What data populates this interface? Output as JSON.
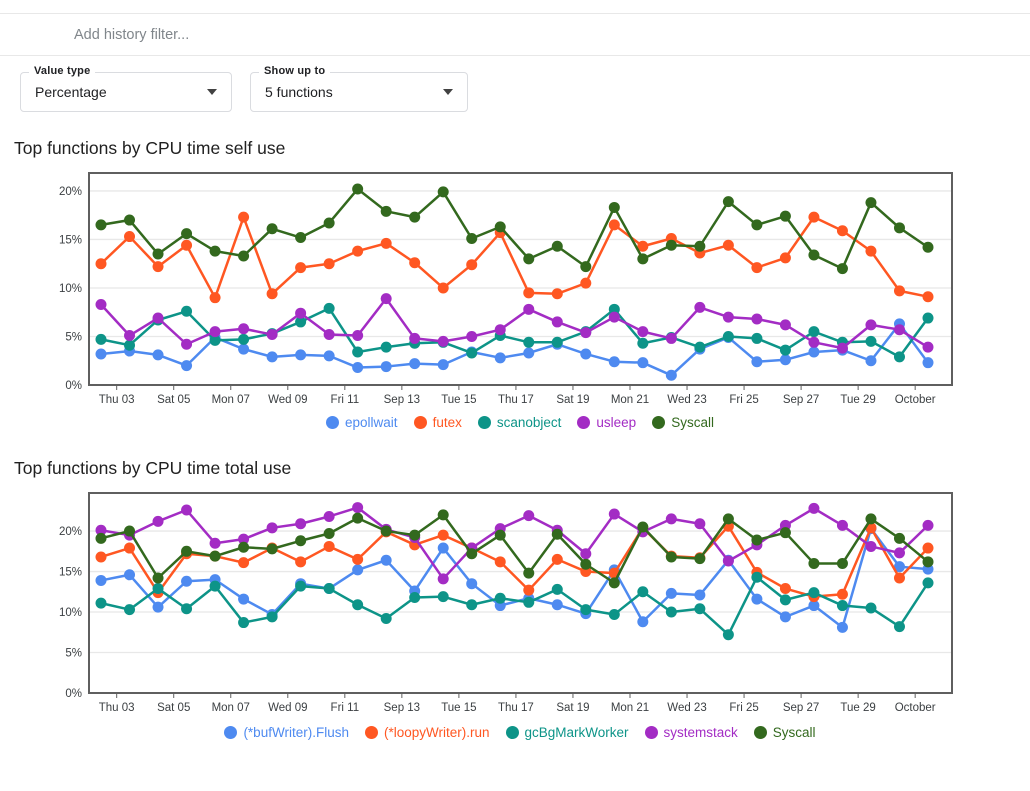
{
  "filter_bar": {
    "icon": "filter-list-icon",
    "placeholder": "Add history filter..."
  },
  "controls": {
    "value_type": {
      "label": "Value type",
      "value": "Percentage",
      "icon": "caret-down-icon"
    },
    "show_up_to": {
      "label": "Show up to",
      "value": "5 functions",
      "icon": "caret-down-icon"
    }
  },
  "colors": {
    "blue": "#4e8af0",
    "orange": "#ff5722",
    "teal": "#0d9488",
    "purple": "#a32cc4",
    "green": "#33691e"
  },
  "chart_data": [
    {
      "type": "line",
      "title": "Top functions by CPU time self use",
      "xlabel": "",
      "ylabel": "",
      "ylim": [
        0,
        21.85
      ],
      "yticks": [
        0,
        5,
        10,
        15,
        20
      ],
      "y_tick_labels": [
        "0%",
        "5%",
        "10%",
        "15%",
        "20%"
      ],
      "x_tick_labels": [
        "Thu 03",
        "Sat 05",
        "Mon 07",
        "Wed 09",
        "Fri 11",
        "Sep 13",
        "Tue 15",
        "Thu 17",
        "Sat 19",
        "Mon 21",
        "Wed 23",
        "Fri 25",
        "Sep 27",
        "Tue 29",
        "October"
      ],
      "grid": true,
      "legend_position": "bottom",
      "series": [
        {
          "name": "epollwait",
          "color": "#4e8af0",
          "values": [
            3.2,
            3.5,
            3.1,
            2.0,
            4.9,
            3.7,
            2.9,
            3.1,
            3.0,
            1.8,
            1.9,
            2.2,
            2.1,
            3.4,
            2.8,
            3.3,
            4.2,
            3.2,
            2.4,
            2.3,
            1.0,
            3.7,
            4.9,
            2.4,
            2.6,
            3.4,
            3.6,
            2.5,
            6.3,
            2.3
          ]
        },
        {
          "name": "futex",
          "color": "#ff5722",
          "values": [
            12.5,
            15.3,
            12.2,
            14.4,
            9.0,
            17.3,
            9.4,
            12.1,
            12.5,
            13.8,
            14.6,
            12.6,
            10.0,
            12.4,
            15.7,
            9.5,
            9.4,
            10.5,
            16.5,
            14.3,
            15.1,
            13.6,
            14.4,
            12.1,
            13.1,
            17.3,
            15.9,
            13.8,
            9.7,
            9.1
          ]
        },
        {
          "name": "scanobject",
          "color": "#0d9488",
          "values": [
            4.7,
            4.1,
            6.7,
            7.6,
            4.6,
            4.7,
            5.3,
            6.5,
            7.9,
            3.4,
            3.9,
            4.3,
            4.4,
            3.3,
            5.1,
            4.4,
            4.4,
            5.5,
            7.8,
            4.3,
            4.9,
            3.9,
            5.0,
            4.8,
            3.6,
            5.5,
            4.4,
            4.5,
            2.9,
            6.9
          ]
        },
        {
          "name": "usleep",
          "color": "#a32cc4",
          "values": [
            8.3,
            5.1,
            6.9,
            4.2,
            5.5,
            5.8,
            5.2,
            7.4,
            5.2,
            5.1,
            8.9,
            4.8,
            4.5,
            5.0,
            5.7,
            7.8,
            6.5,
            5.4,
            7.0,
            5.5,
            4.8,
            8.0,
            7.0,
            6.8,
            6.2,
            4.4,
            3.8,
            6.2,
            5.7,
            3.9
          ]
        },
        {
          "name": "Syscall",
          "color": "#33691e",
          "values": [
            16.5,
            17.0,
            13.5,
            15.6,
            13.8,
            13.3,
            16.1,
            15.2,
            16.7,
            20.2,
            17.9,
            17.3,
            19.9,
            15.1,
            16.3,
            13.0,
            14.3,
            12.2,
            18.3,
            13.0,
            14.4,
            14.3,
            18.9,
            16.5,
            17.4,
            13.4,
            12.0,
            18.8,
            16.2,
            14.2
          ]
        }
      ]
    },
    {
      "type": "line",
      "title": "Top functions by CPU time total use",
      "xlabel": "",
      "ylabel": "",
      "ylim": [
        0,
        24.7
      ],
      "yticks": [
        0,
        5,
        10,
        15,
        20
      ],
      "y_tick_labels": [
        "0%",
        "5%",
        "10%",
        "15%",
        "20%"
      ],
      "x_tick_labels": [
        "Thu 03",
        "Sat 05",
        "Mon 07",
        "Wed 09",
        "Fri 11",
        "Sep 13",
        "Tue 15",
        "Thu 17",
        "Sat 19",
        "Mon 21",
        "Wed 23",
        "Fri 25",
        "Sep 27",
        "Tue 29",
        "October"
      ],
      "grid": true,
      "legend_position": "bottom",
      "series": [
        {
          "name": "(*bufWriter).Flush",
          "color": "#4e8af0",
          "values": [
            13.9,
            14.6,
            10.6,
            13.8,
            14.0,
            11.6,
            9.7,
            13.5,
            12.9,
            15.2,
            16.4,
            12.6,
            17.9,
            13.5,
            10.8,
            11.7,
            10.9,
            9.8,
            15.2,
            8.8,
            12.3,
            12.1,
            16.4,
            11.6,
            9.4,
            10.8,
            8.1,
            20.3,
            15.6,
            15.3
          ]
        },
        {
          "name": "(*loopyWriter).run",
          "color": "#ff5722",
          "values": [
            16.8,
            17.9,
            12.4,
            17.2,
            16.9,
            16.1,
            17.9,
            16.2,
            18.1,
            16.5,
            19.9,
            18.3,
            19.5,
            17.9,
            16.2,
            12.7,
            16.5,
            15.0,
            14.8,
            20.4,
            16.9,
            16.7,
            20.6,
            14.9,
            12.9,
            11.9,
            12.2,
            20.4,
            14.2,
            17.9
          ]
        },
        {
          "name": "gcBgMarkWorker",
          "color": "#0d9488",
          "values": [
            11.1,
            10.3,
            12.9,
            10.4,
            13.2,
            8.7,
            9.4,
            13.2,
            12.9,
            10.9,
            9.2,
            11.8,
            11.9,
            10.9,
            11.7,
            11.2,
            12.8,
            10.3,
            9.7,
            12.5,
            10.0,
            10.4,
            7.2,
            14.3,
            11.5,
            12.4,
            10.8,
            10.5,
            8.2,
            13.6
          ]
        },
        {
          "name": "systemstack",
          "color": "#a32cc4",
          "values": [
            20.1,
            19.5,
            21.2,
            22.6,
            18.5,
            19.0,
            20.4,
            20.9,
            21.8,
            22.9,
            20.2,
            19.2,
            14.1,
            17.9,
            20.3,
            21.9,
            20.1,
            17.2,
            22.1,
            19.9,
            21.5,
            20.9,
            16.3,
            18.3,
            20.7,
            22.8,
            20.7,
            18.1,
            17.3,
            20.7
          ]
        },
        {
          "name": "Syscall",
          "color": "#33691e",
          "values": [
            19.1,
            20.0,
            14.2,
            17.5,
            16.9,
            18.0,
            17.8,
            18.8,
            19.7,
            21.6,
            20.0,
            19.5,
            22.0,
            17.2,
            19.5,
            14.8,
            19.6,
            15.9,
            13.6,
            20.5,
            16.8,
            16.6,
            21.5,
            18.9,
            19.8,
            16.0,
            16.0,
            21.5,
            19.1,
            16.2
          ]
        }
      ]
    }
  ]
}
